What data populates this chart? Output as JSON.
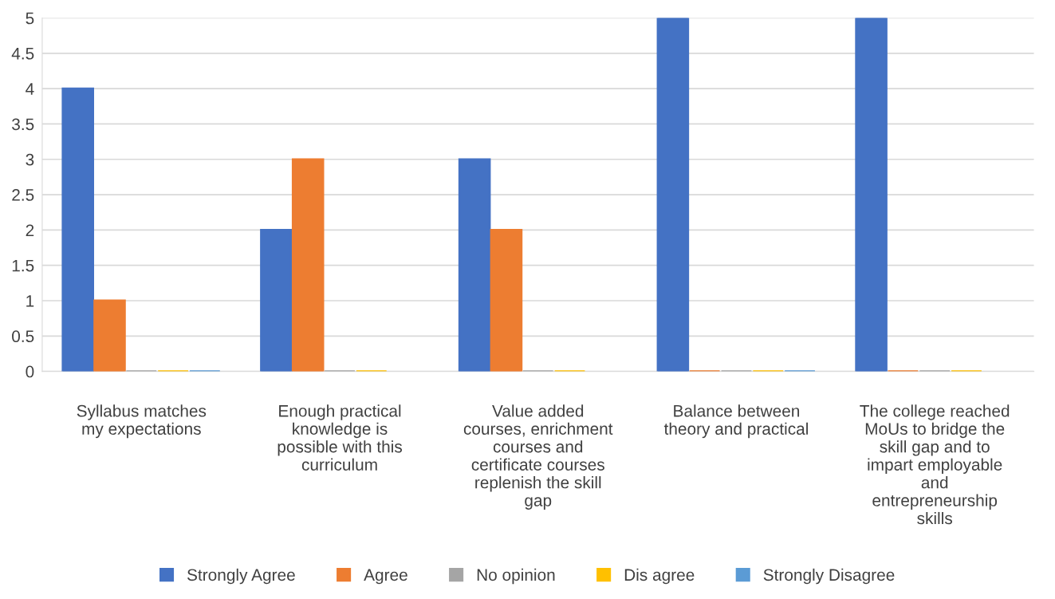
{
  "chart_data": {
    "type": "bar",
    "categories": [
      "Syllabus matches\nmy expectations",
      "Enough practical\nknowledge is\npossible with this\ncurriculum",
      "Value added\ncourses, enrichment\ncourses and\ncertificate courses\nreplenish the skill\ngap",
      "Balance between\ntheory and practical",
      "The college reached\nMoUs to bridge the\nskill gap and to\nimpart employable\nand\nentrepreneurship\nskills"
    ],
    "series": [
      {
        "name": "Strongly Agree",
        "color": "#4472c4",
        "values": [
          4,
          2,
          3,
          5,
          5
        ]
      },
      {
        "name": "Agree",
        "color": "#ed7d31",
        "values": [
          1,
          3,
          2,
          0,
          0
        ]
      },
      {
        "name": "No opinion",
        "color": "#a5a5a5",
        "values": [
          0,
          0,
          0,
          0,
          0
        ]
      },
      {
        "name": "Dis agree",
        "color": "#ffc000",
        "values": [
          0,
          0,
          0,
          0,
          0
        ]
      },
      {
        "name": "Strongly Disagree",
        "color": "#5b9bd5",
        "values": [
          0,
          null,
          null,
          0,
          null
        ]
      }
    ],
    "ylim": [
      0,
      5
    ],
    "yticks": [
      0,
      0.5,
      1,
      1.5,
      2,
      2.5,
      3,
      3.5,
      4,
      4.5,
      5
    ],
    "grid": "y",
    "legend": "bottom"
  }
}
